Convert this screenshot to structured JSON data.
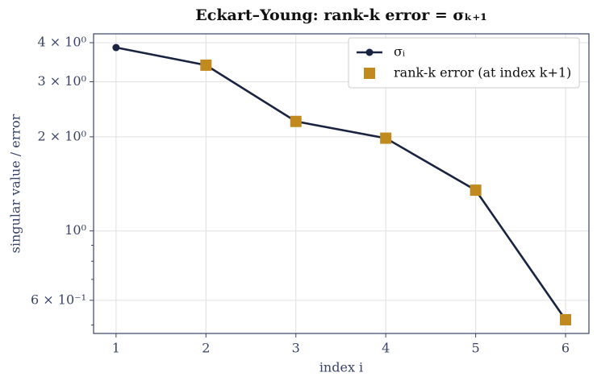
{
  "chart_data": {
    "type": "line",
    "title": "Eckart–Young: rank-k error = σₖ₊₁",
    "xlabel": "index  i",
    "ylabel": "singular value / error",
    "series": [
      {
        "name": "σᵢ",
        "color": "#1a2340",
        "marker": "circle",
        "line": true,
        "x": [
          1,
          2,
          3,
          4,
          5,
          6
        ],
        "values": [
          3.86,
          3.39,
          2.24,
          1.98,
          1.35,
          0.52
        ]
      },
      {
        "name": "rank-k error (at index k+1)",
        "color": "#c08a1e",
        "marker": "square",
        "line": false,
        "x": [
          2,
          3,
          4,
          5,
          6
        ],
        "values": [
          3.39,
          2.24,
          1.98,
          1.35,
          0.52
        ]
      }
    ],
    "xlim": [
      0.75,
      6.26
    ],
    "xticks": [
      1,
      2,
      3,
      4,
      5,
      6
    ],
    "ylim": [
      0.47,
      4.27
    ],
    "ylog": true,
    "yticks": [
      {
        "value": 0.6,
        "label": "6 × 10⁻¹"
      },
      {
        "value": 1,
        "label": "10⁰"
      },
      {
        "value": 2,
        "label": "2 × 10⁰"
      },
      {
        "value": 3,
        "label": "3 × 10⁰"
      },
      {
        "value": 4,
        "label": "4 × 10⁰"
      }
    ],
    "yminorticks": [
      0.5,
      0.7,
      0.8,
      0.9
    ],
    "grid": true,
    "legend": "upper right"
  }
}
